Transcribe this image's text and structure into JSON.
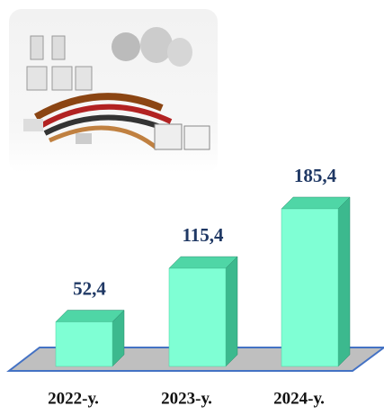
{
  "chart_data": {
    "type": "bar3d",
    "categories": [
      "2022-у.",
      "2023-у.",
      "2024-у."
    ],
    "values": [
      52.4,
      115.4,
      185.4
    ],
    "value_labels": [
      "52,4",
      "115,4",
      "185,4"
    ],
    "color": "#7fffd4"
  }
}
